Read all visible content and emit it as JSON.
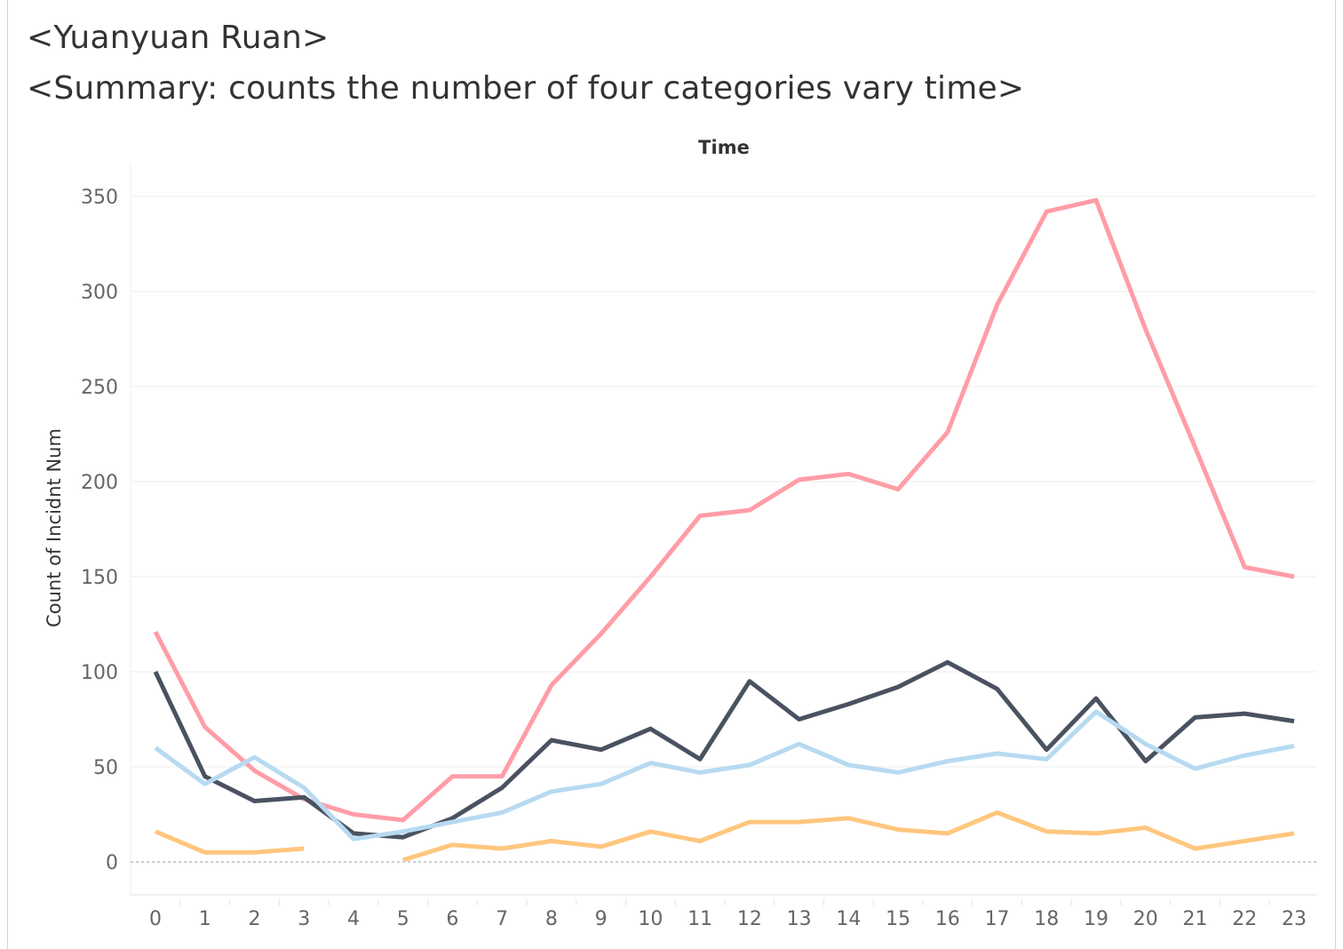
{
  "header": {
    "author": "<Yuanyuan Ruan>",
    "summary": "<Summary: counts the number of four categories vary time>"
  },
  "chart_data": {
    "type": "line",
    "title": "Time",
    "xlabel": "",
    "ylabel": "Count of Incidnt Num",
    "categories": [
      "0",
      "1",
      "2",
      "3",
      "4",
      "5",
      "6",
      "7",
      "8",
      "9",
      "10",
      "11",
      "12",
      "13",
      "14",
      "15",
      "16",
      "17",
      "18",
      "19",
      "20",
      "21",
      "22",
      "23"
    ],
    "ylim": [
      -17,
      367
    ],
    "yticks": [
      0,
      50,
      100,
      150,
      200,
      250,
      300,
      350
    ],
    "grid": true,
    "zero_line": "dashed",
    "legend": "none",
    "series": [
      {
        "color": "#ff9da7",
        "values": [
          121,
          71,
          48,
          33,
          25,
          22,
          45,
          45,
          93,
          120,
          150,
          182,
          185,
          201,
          204,
          196,
          226,
          293,
          342,
          348,
          280,
          218,
          155,
          150
        ]
      },
      {
        "color": "#4a5261",
        "values": [
          100,
          45,
          32,
          34,
          15,
          13,
          23,
          39,
          64,
          59,
          70,
          54,
          95,
          75,
          83,
          92,
          105,
          91,
          59,
          86,
          53,
          76,
          78,
          74
        ]
      },
      {
        "color": "#b6daf1",
        "values": [
          60,
          41,
          55,
          39,
          12,
          16,
          21,
          26,
          37,
          41,
          52,
          47,
          51,
          62,
          51,
          47,
          53,
          57,
          54,
          79,
          62,
          49,
          56,
          61
        ]
      },
      {
        "color": "#ffc67e",
        "values": [
          16,
          5,
          5,
          7,
          null,
          1,
          9,
          7,
          11,
          8,
          16,
          11,
          21,
          21,
          23,
          17,
          15,
          26,
          16,
          15,
          18,
          7,
          11,
          15
        ]
      }
    ]
  }
}
